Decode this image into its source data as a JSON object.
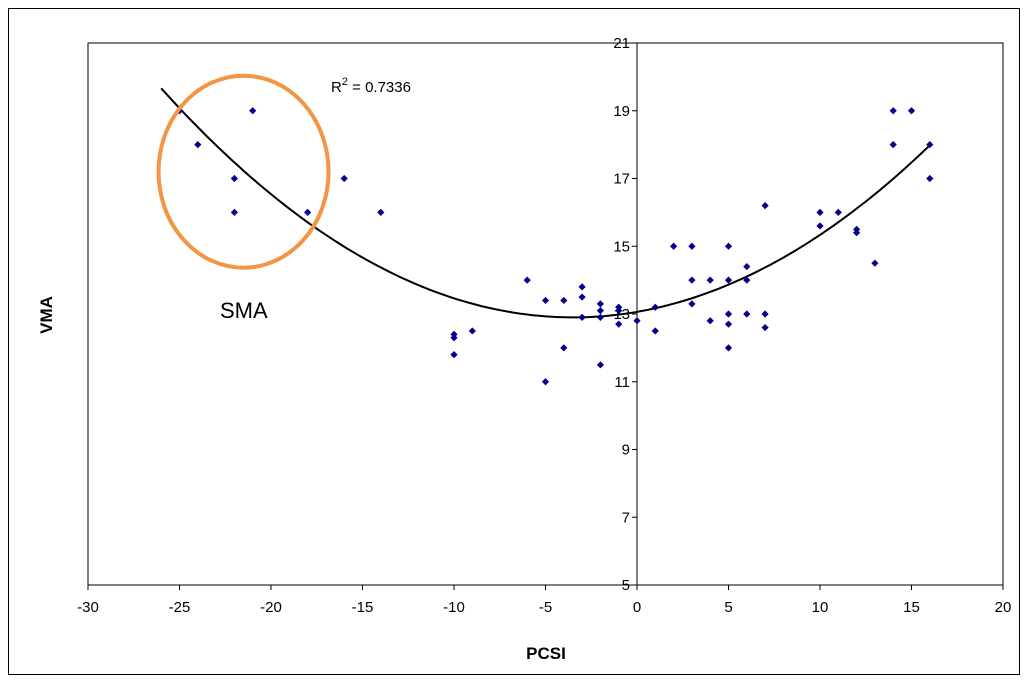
{
  "chart_data": {
    "type": "scatter",
    "title": "",
    "xlabel": "PCSI",
    "ylabel": "VMA",
    "xlim": [
      -30,
      20
    ],
    "ylim": [
      5,
      21
    ],
    "x_ticks": [
      -30,
      -25,
      -20,
      -15,
      -10,
      -5,
      0,
      5,
      10,
      15,
      20
    ],
    "y_ticks": [
      5,
      7,
      9,
      11,
      13,
      15,
      17,
      19,
      21
    ],
    "grid": false,
    "colors": {
      "points": "#00008B",
      "trendline": "#000000",
      "highlight": "#F29545"
    },
    "points": [
      {
        "x": -25,
        "y": 19
      },
      {
        "x": -24,
        "y": 18
      },
      {
        "x": -22,
        "y": 17
      },
      {
        "x": -22,
        "y": 16
      },
      {
        "x": -21,
        "y": 19
      },
      {
        "x": -18,
        "y": 16
      },
      {
        "x": -16,
        "y": 17
      },
      {
        "x": -14,
        "y": 16
      },
      {
        "x": -10,
        "y": 12.4
      },
      {
        "x": -10,
        "y": 12.3
      },
      {
        "x": -10,
        "y": 11.8
      },
      {
        "x": -9,
        "y": 12.5
      },
      {
        "x": -6,
        "y": 14
      },
      {
        "x": -5,
        "y": 13.4
      },
      {
        "x": -5,
        "y": 11
      },
      {
        "x": -4,
        "y": 13.4
      },
      {
        "x": -4,
        "y": 12
      },
      {
        "x": -3,
        "y": 13.8
      },
      {
        "x": -3,
        "y": 13.5
      },
      {
        "x": -3,
        "y": 12.9
      },
      {
        "x": -2,
        "y": 13.3
      },
      {
        "x": -2,
        "y": 13.1
      },
      {
        "x": -2,
        "y": 12.9
      },
      {
        "x": -2,
        "y": 11.5
      },
      {
        "x": -1,
        "y": 13.2
      },
      {
        "x": -1,
        "y": 13.1
      },
      {
        "x": -1,
        "y": 12.7
      },
      {
        "x": 0,
        "y": 12.8
      },
      {
        "x": 1,
        "y": 13.2
      },
      {
        "x": 1,
        "y": 12.5
      },
      {
        "x": 2,
        "y": 15
      },
      {
        "x": 3,
        "y": 15
      },
      {
        "x": 3,
        "y": 14
      },
      {
        "x": 3,
        "y": 13.3
      },
      {
        "x": 4,
        "y": 14
      },
      {
        "x": 4,
        "y": 12.8
      },
      {
        "x": 5,
        "y": 15
      },
      {
        "x": 5,
        "y": 14
      },
      {
        "x": 5,
        "y": 13
      },
      {
        "x": 5,
        "y": 12.7
      },
      {
        "x": 5,
        "y": 12
      },
      {
        "x": 6,
        "y": 14.4
      },
      {
        "x": 6,
        "y": 14
      },
      {
        "x": 6,
        "y": 13
      },
      {
        "x": 7,
        "y": 16.2
      },
      {
        "x": 7,
        "y": 13
      },
      {
        "x": 7,
        "y": 12.6
      },
      {
        "x": 10,
        "y": 16
      },
      {
        "x": 10,
        "y": 15.6
      },
      {
        "x": 11,
        "y": 16
      },
      {
        "x": 12,
        "y": 15.5
      },
      {
        "x": 12,
        "y": 15.4
      },
      {
        "x": 13,
        "y": 14.5
      },
      {
        "x": 14,
        "y": 19
      },
      {
        "x": 14,
        "y": 18
      },
      {
        "x": 15,
        "y": 19
      },
      {
        "x": 16,
        "y": 18
      },
      {
        "x": 16,
        "y": 17
      }
    ],
    "trendline": {
      "type": "polynomial-2",
      "x_range": [
        -26,
        16
      ],
      "vertex": {
        "x": -3.5,
        "y": 12.9
      },
      "a": 0.01336,
      "r_squared_label": "R² = 0.7336"
    },
    "annotations": {
      "r2_prefix": "R",
      "r2_sup": "2",
      "r2_suffix": " = 0.7336",
      "highlight_label": "SMA",
      "highlight_ellipse_center": {
        "x": -21.5,
        "y": 17.2
      }
    }
  }
}
